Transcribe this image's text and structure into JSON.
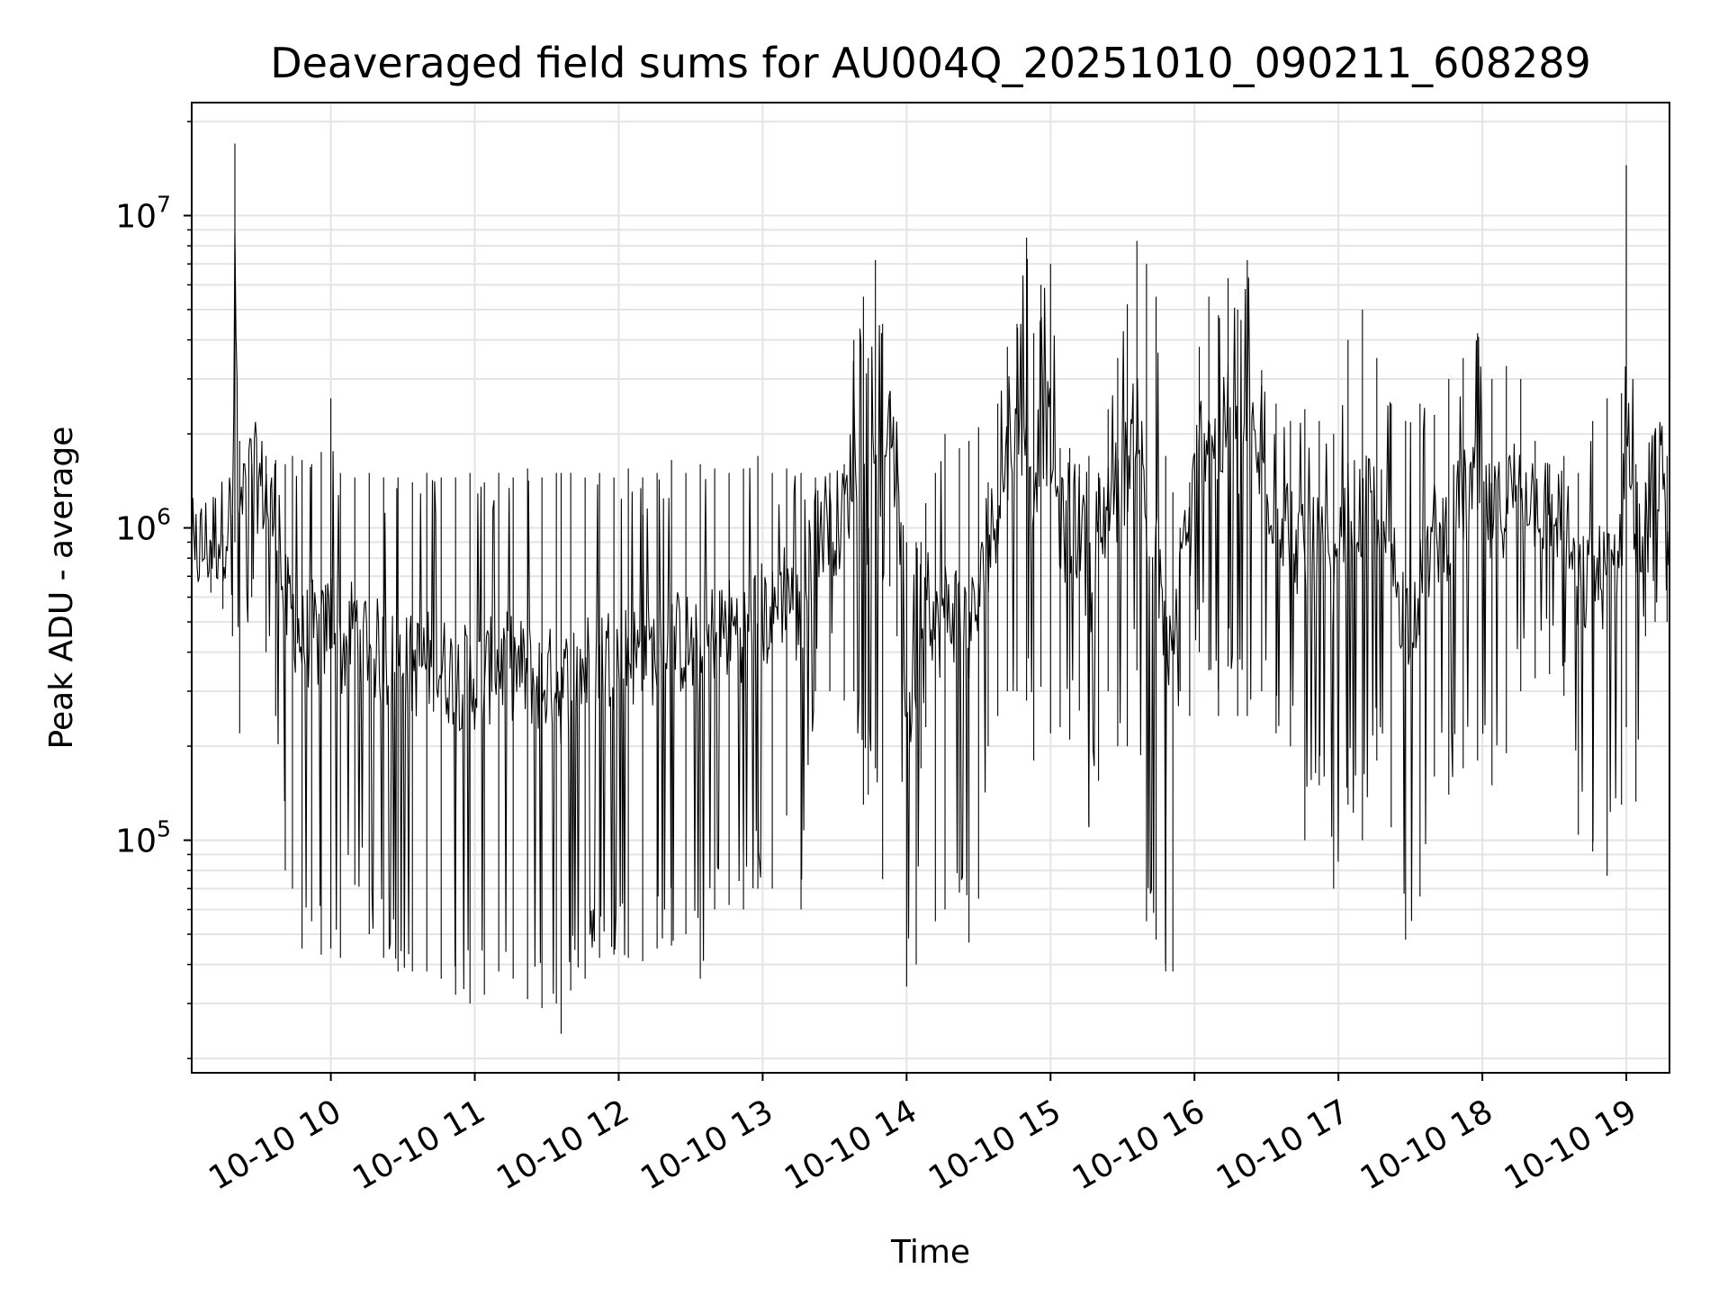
{
  "chart_data": {
    "type": "line",
    "title": "Deaveraged field sums for AU004Q_20251010_090211_608289",
    "xlabel": "Time",
    "ylabel": "Peak ADU - average",
    "yscale": "log",
    "ylim": [
      18000,
      23000000
    ],
    "xlim": [
      "2025-10-10 09:02",
      "2025-10-10 19:18"
    ],
    "grid": true,
    "line_color": "#000000",
    "x_ticks": [
      "10-10 10",
      "10-10 11",
      "10-10 12",
      "10-10 13",
      "10-10 14",
      "10-10 15",
      "10-10 16",
      "10-10 17",
      "10-10 18",
      "10-10 19"
    ],
    "y_ticks": [
      {
        "base": "10",
        "exp": "5",
        "value": 100000
      },
      {
        "base": "10",
        "exp": "6",
        "value": 1000000
      },
      {
        "base": "10",
        "exp": "7",
        "value": 10000000
      }
    ],
    "series": [
      {
        "x": [
          "2025-10-10 09:02",
          "2025-10-10 09:10",
          "2025-10-10 09:15",
          "2025-10-10 09:19",
          "2025-10-10 09:20",
          "2025-10-10 09:22",
          "2025-10-10 09:27",
          "2025-10-10 09:33",
          "2025-10-10 09:37",
          "2025-10-10 09:41",
          "2025-10-10 09:44",
          "2025-10-10 09:48",
          "2025-10-10 09:52",
          "2025-10-10 09:56",
          "2025-10-10 10:00",
          "2025-10-10 10:04",
          "2025-10-10 10:10",
          "2025-10-10 10:16",
          "2025-10-10 10:22",
          "2025-10-10 10:28",
          "2025-10-10 10:34",
          "2025-10-10 10:40",
          "2025-10-10 10:46",
          "2025-10-10 10:52",
          "2025-10-10 10:58",
          "2025-10-10 11:04",
          "2025-10-10 11:10",
          "2025-10-10 11:16",
          "2025-10-10 11:22",
          "2025-10-10 11:28",
          "2025-10-10 11:34",
          "2025-10-10 11:36",
          "2025-10-10 11:40",
          "2025-10-10 11:46",
          "2025-10-10 11:52",
          "2025-10-10 11:58",
          "2025-10-10 12:04",
          "2025-10-10 12:10",
          "2025-10-10 12:16",
          "2025-10-10 12:22",
          "2025-10-10 12:28",
          "2025-10-10 12:34",
          "2025-10-10 12:40",
          "2025-10-10 12:46",
          "2025-10-10 12:52",
          "2025-10-10 12:58",
          "2025-10-10 13:04",
          "2025-10-10 13:10",
          "2025-10-10 13:16",
          "2025-10-10 13:22",
          "2025-10-10 13:28",
          "2025-10-10 13:34",
          "2025-10-10 13:38",
          "2025-10-10 13:42",
          "2025-10-10 13:44",
          "2025-10-10 13:47",
          "2025-10-10 13:50",
          "2025-10-10 13:53",
          "2025-10-10 13:56",
          "2025-10-10 14:00",
          "2025-10-10 14:04",
          "2025-10-10 14:06",
          "2025-10-10 14:08",
          "2025-10-10 14:12",
          "2025-10-10 14:16",
          "2025-10-10 14:22",
          "2025-10-10 14:26",
          "2025-10-10 14:30",
          "2025-10-10 14:34",
          "2025-10-10 14:38",
          "2025-10-10 14:42",
          "2025-10-10 14:46",
          "2025-10-10 14:50",
          "2025-10-10 14:53",
          "2025-10-10 14:56",
          "2025-10-10 15:00",
          "2025-10-10 15:04",
          "2025-10-10 15:08",
          "2025-10-10 15:12",
          "2025-10-10 15:16",
          "2025-10-10 15:20",
          "2025-10-10 15:24",
          "2025-10-10 15:28",
          "2025-10-10 15:32",
          "2025-10-10 15:36",
          "2025-10-10 15:40",
          "2025-10-10 15:44",
          "2025-10-10 15:48",
          "2025-10-10 15:51",
          "2025-10-10 15:54",
          "2025-10-10 15:58",
          "2025-10-10 16:02",
          "2025-10-10 16:06",
          "2025-10-10 16:10",
          "2025-10-10 16:14",
          "2025-10-10 16:18",
          "2025-10-10 16:22",
          "2025-10-10 16:28",
          "2025-10-10 16:34",
          "2025-10-10 16:40",
          "2025-10-10 16:46",
          "2025-10-10 16:52",
          "2025-10-10 16:58",
          "2025-10-10 17:04",
          "2025-10-10 17:10",
          "2025-10-10 17:16",
          "2025-10-10 17:22",
          "2025-10-10 17:28",
          "2025-10-10 17:34",
          "2025-10-10 17:40",
          "2025-10-10 17:46",
          "2025-10-10 17:52",
          "2025-10-10 17:58",
          "2025-10-10 18:04",
          "2025-10-10 18:10",
          "2025-10-10 18:16",
          "2025-10-10 18:22",
          "2025-10-10 18:28",
          "2025-10-10 18:34",
          "2025-10-10 18:40",
          "2025-10-10 18:46",
          "2025-10-10 18:52",
          "2025-10-10 18:58",
          "2025-10-10 19:00",
          "2025-10-10 19:04",
          "2025-10-10 19:08",
          "2025-10-10 19:12",
          "2025-10-10 19:17"
        ],
        "high": [
          800000,
          880000,
          950000,
          1100000,
          17000000,
          1900000,
          1600000,
          1700000,
          1650000,
          1600000,
          1700000,
          1650000,
          1600000,
          1750000,
          2600000,
          1500000,
          1450000,
          1500000,
          1450000,
          1450000,
          1400000,
          1500000,
          1450000,
          1450000,
          1500000,
          1400000,
          1500000,
          1450000,
          1550000,
          1450000,
          1500000,
          1500000,
          1500000,
          1450000,
          1500000,
          1450000,
          1550000,
          1450000,
          1500000,
          1650000,
          1500000,
          1600000,
          1550000,
          1500000,
          1550000,
          1700000,
          1500000,
          1550000,
          1500000,
          1450000,
          1500000,
          1600000,
          4000000,
          5500000,
          3500000,
          7200000,
          4500000,
          2600000,
          1900000,
          900000,
          900000,
          900000,
          1200000,
          1500000,
          2000000,
          1800000,
          1900000,
          2100000,
          1400000,
          2500000,
          3800000,
          4500000,
          8500000,
          4200000,
          6000000,
          7000000,
          1800000,
          1800000,
          1600000,
          1700000,
          1500000,
          2400000,
          3500000,
          5200000,
          8300000,
          7000000,
          5500000,
          1700000,
          1300000,
          1000000,
          1400000,
          3800000,
          5500000,
          4800000,
          6300000,
          5000000,
          7200000,
          3200000,
          2500000,
          2200000,
          2400000,
          2200000,
          2000000,
          4000000,
          5000000,
          3500000,
          2500000,
          2200000,
          2500000,
          2300000,
          3000000,
          3500000,
          4200000,
          3000000,
          3300000,
          3000000,
          1900000,
          1600000,
          1700000,
          1500000,
          2200000,
          2600000,
          2700000,
          14500000,
          1600000,
          1400000,
          2000000,
          1700000
        ],
        "low": [
          600000,
          620000,
          550000,
          450000,
          900000,
          220000,
          600000,
          400000,
          250000,
          80000,
          70000,
          45000,
          55000,
          43000,
          45000,
          42000,
          72000,
          50000,
          42000,
          38000,
          38000,
          38000,
          36000,
          32000,
          30000,
          32000,
          38000,
          36000,
          31000,
          29000,
          30000,
          24000,
          33000,
          36000,
          42000,
          43000,
          42000,
          41000,
          45000,
          46000,
          50000,
          36000,
          60000,
          62000,
          60000,
          70000,
          70000,
          120000,
          60000,
          300000,
          300000,
          280000,
          300000,
          130000,
          140000,
          170000,
          75000,
          650000,
          450000,
          34000,
          40000,
          170000,
          230000,
          55000,
          60000,
          68000,
          47000,
          65000,
          200000,
          250000,
          300000,
          300000,
          280000,
          180000,
          310000,
          220000,
          230000,
          210000,
          260000,
          110000,
          155000,
          300000,
          200000,
          200000,
          350000,
          55000,
          48000,
          38000,
          38000,
          300000,
          250000,
          400000,
          350000,
          250000,
          360000,
          250000,
          250000,
          300000,
          220000,
          200000,
          100000,
          150000,
          70000,
          130000,
          100000,
          180000,
          110000,
          48000,
          66000,
          160000,
          140000,
          170000,
          180000,
          150000,
          190000,
          300000,
          330000,
          340000,
          290000,
          104000,
          92000,
          77000,
          130000,
          230000,
          133000,
          450000,
          500000,
          500000
        ]
      }
    ]
  }
}
